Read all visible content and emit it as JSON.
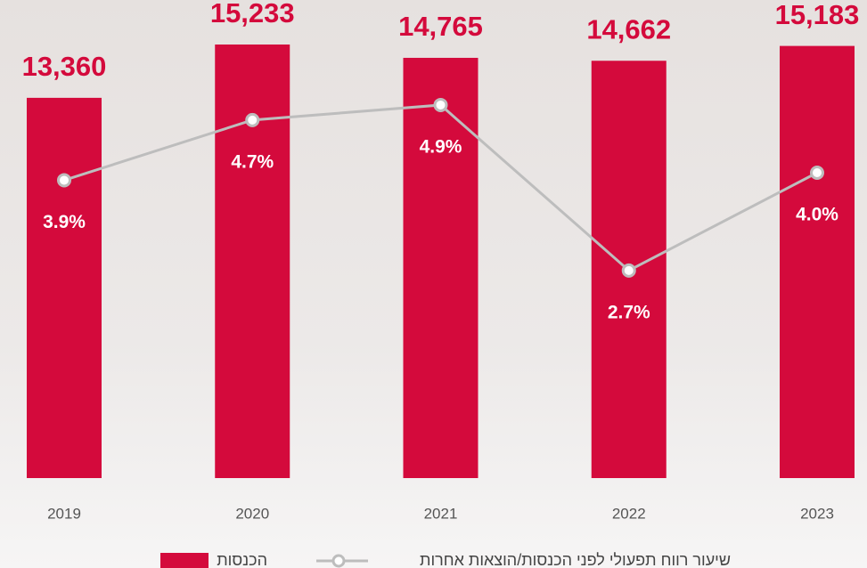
{
  "chart_data": {
    "type": "combo",
    "categories": [
      "2019",
      "2020",
      "2021",
      "2022",
      "2023"
    ],
    "series": [
      {
        "name": "הכנסות",
        "type": "bar",
        "color": "#d40a3c",
        "values": [
          13360,
          15233,
          14765,
          14662,
          15183
        ],
        "value_labels": [
          "13,360",
          "15,233",
          "14,765",
          "14,662",
          "15,183"
        ]
      },
      {
        "name": "שיעור רווח תפעולי לפני הכנסות/הוצאות אחרות",
        "type": "line",
        "axis": "y2",
        "color": "#bdbdbd",
        "values": [
          3.9,
          4.7,
          4.9,
          2.7,
          4.0
        ],
        "value_labels": [
          "3.9%",
          "4.7%",
          "4.9%",
          "2.7%",
          "4.0%"
        ]
      }
    ]
  }
}
